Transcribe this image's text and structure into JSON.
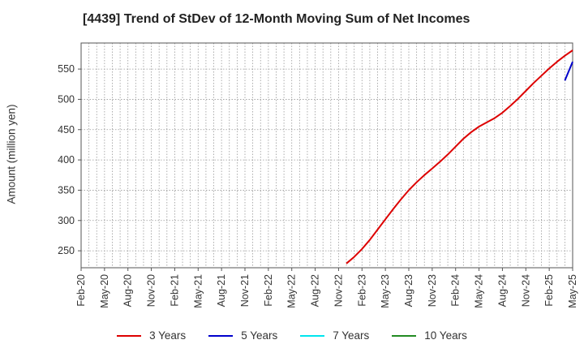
{
  "chart_data": {
    "type": "line",
    "title": "[4439]  Trend of StDev of 12-Month Moving Sum of Net Incomes",
    "xlabel": "",
    "ylabel": "Amount (million yen)",
    "x_ticks": [
      "Feb-20",
      "May-20",
      "Aug-20",
      "Nov-20",
      "Feb-21",
      "May-21",
      "Aug-21",
      "Nov-21",
      "Feb-22",
      "May-22",
      "Aug-22",
      "Nov-22",
      "Feb-23",
      "May-23",
      "Aug-23",
      "Nov-23",
      "Feb-24",
      "May-24",
      "Aug-24",
      "Nov-24",
      "Feb-25",
      "May-25"
    ],
    "y_ticks": [
      250,
      300,
      350,
      400,
      450,
      500,
      550
    ],
    "ylim": [
      222,
      593
    ],
    "xlim_months": [
      0,
      63
    ],
    "grid": true,
    "legend_position": "bottom",
    "series": [
      {
        "name": "3 Years",
        "color": "#dd0000",
        "points": [
          [
            34,
            229
          ],
          [
            35,
            240
          ],
          [
            36,
            253
          ],
          [
            37,
            268
          ],
          [
            38,
            285
          ],
          [
            39,
            302
          ],
          [
            40,
            319
          ],
          [
            41,
            335
          ],
          [
            42,
            350
          ],
          [
            43,
            363
          ],
          [
            44,
            375
          ],
          [
            45,
            386
          ],
          [
            46,
            397
          ],
          [
            47,
            409
          ],
          [
            48,
            422
          ],
          [
            49,
            435
          ],
          [
            50,
            446
          ],
          [
            51,
            455
          ],
          [
            52,
            462
          ],
          [
            53,
            469
          ],
          [
            54,
            478
          ],
          [
            55,
            489
          ],
          [
            56,
            501
          ],
          [
            57,
            514
          ],
          [
            58,
            527
          ],
          [
            59,
            539
          ],
          [
            60,
            551
          ],
          [
            61,
            562
          ],
          [
            62,
            572
          ],
          [
            63,
            581
          ]
        ]
      },
      {
        "name": "5 Years",
        "color": "#0000cc",
        "points": [
          [
            62,
            531
          ],
          [
            63,
            562
          ]
        ]
      },
      {
        "name": "7 Years",
        "color": "#00e5ee",
        "points": []
      },
      {
        "name": "10 Years",
        "color": "#228b22",
        "points": []
      }
    ]
  }
}
